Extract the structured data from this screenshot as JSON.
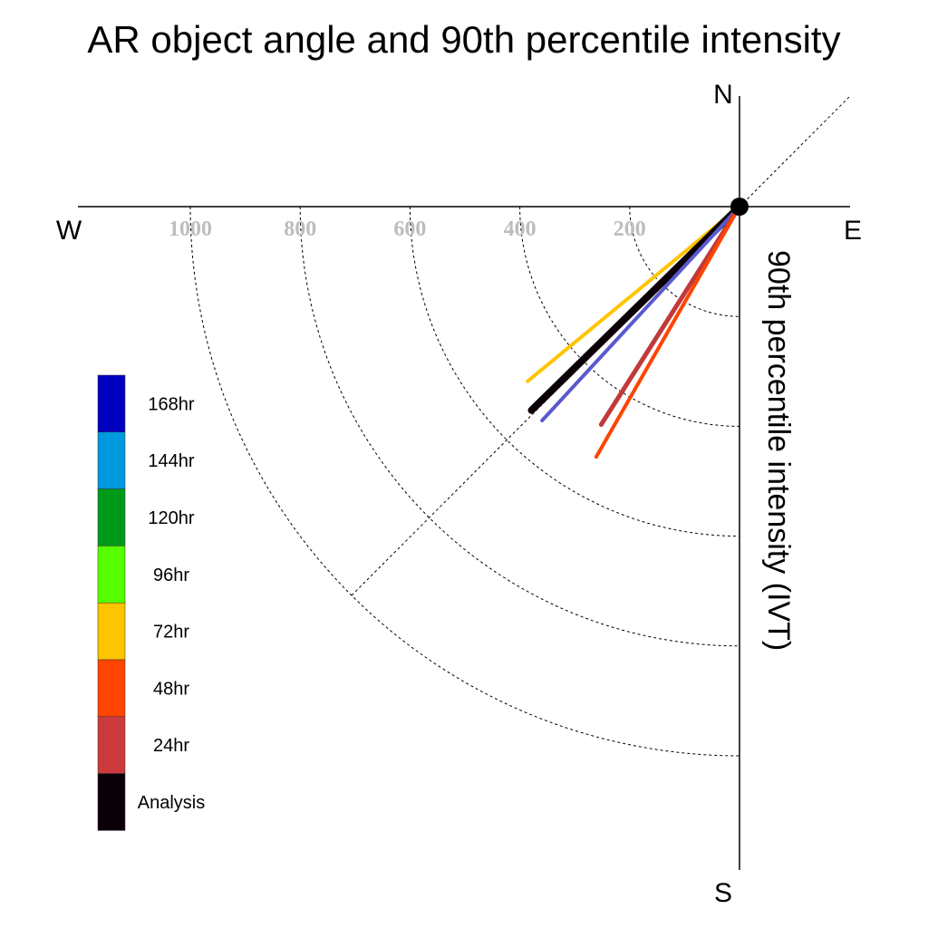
{
  "chart_data": {
    "type": "polar-vector",
    "title": "AR object angle and 90th percentile intensity",
    "ylabel": "90th percentile intensity (IVT)",
    "compass": {
      "north": "N",
      "south": "S",
      "east": "E",
      "west": "W"
    },
    "radial_ticks": [
      200,
      400,
      600,
      800,
      1000
    ],
    "radial_tick_labels": [
      "200",
      "400",
      "600",
      "800",
      "1000"
    ],
    "radial_max": 1000,
    "legend": {
      "placement": "left",
      "entries": [
        {
          "label": "168hr",
          "color": "#0000c0"
        },
        {
          "label": "144hr",
          "color": "#0099dd"
        },
        {
          "label": "120hr",
          "color": "#009a1a"
        },
        {
          "label": "96hr",
          "color": "#55ff00"
        },
        {
          "label": "72hr",
          "color": "#ffc400"
        },
        {
          "label": "48hr",
          "color": "#ff4400"
        },
        {
          "label": "24hr",
          "color": "#cc3b3b"
        },
        {
          "label": "Analysis",
          "color": "#0c0008"
        }
      ]
    },
    "vectors": [
      {
        "lead": "72hr",
        "magnitude": 500,
        "angle_deg": 230.5,
        "color": "#ffc400",
        "width": 4
      },
      {
        "lead": "Analysis",
        "magnitude": 530,
        "angle_deg": 225.6,
        "color": "#0c0008",
        "width": 8
      },
      {
        "lead": "168hr",
        "magnitude": 530,
        "angle_deg": 222.7,
        "color": "#5a5acd",
        "width": 4
      },
      {
        "lead": "24hr",
        "magnitude": 470,
        "angle_deg": 212.4,
        "color": "#c0393b",
        "width": 5
      },
      {
        "lead": "48hr",
        "magnitude": 525,
        "angle_deg": 209.8,
        "color": "#ff4400",
        "width": 4
      }
    ]
  }
}
